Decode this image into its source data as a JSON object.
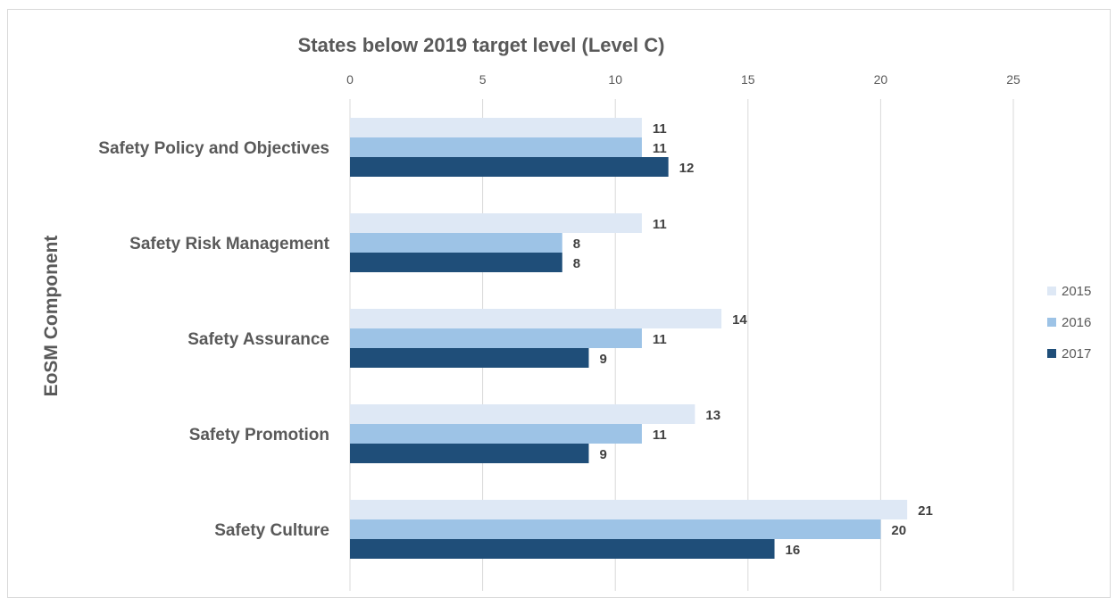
{
  "chart_data": {
    "type": "bar",
    "orientation": "horizontal",
    "title": "States below 2019 target level (Level C)",
    "ylabel": "EoSM Component",
    "xlabel": "",
    "categories": [
      "Safety Policy and Objectives",
      "Safety Risk Management",
      "Safety Assurance",
      "Safety Promotion",
      "Safety Culture"
    ],
    "series": [
      {
        "name": "2015",
        "color": "#dee8f5",
        "values": [
          11,
          11,
          14,
          13,
          21
        ]
      },
      {
        "name": "2016",
        "color": "#9dc3e6",
        "values": [
          11,
          8,
          11,
          11,
          20
        ]
      },
      {
        "name": "2017",
        "color": "#1f4e79",
        "values": [
          12,
          8,
          9,
          9,
          16
        ]
      }
    ],
    "xlim": [
      0,
      25
    ],
    "xticks": [
      0,
      5,
      10,
      15,
      20,
      25
    ],
    "xaxis_position": "top",
    "grid": true,
    "legend_position": "right",
    "data_labels": true
  }
}
